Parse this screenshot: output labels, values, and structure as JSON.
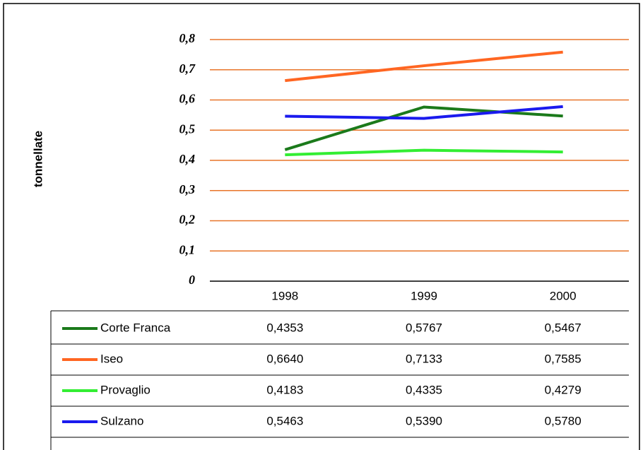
{
  "chart_data": {
    "type": "line",
    "y_label": "tonnellate",
    "categories": [
      "1998",
      "1999",
      "2000"
    ],
    "series": [
      {
        "name": "Corte Franca",
        "color": "#1b7a1b",
        "values": [
          0.4353,
          0.5767,
          0.5467
        ],
        "value_labels": [
          "0,4353",
          "0,5767",
          "0,5467"
        ]
      },
      {
        "name": "Iseo",
        "color": "#ff6622",
        "values": [
          0.664,
          0.7133,
          0.7585
        ],
        "value_labels": [
          "0,6640",
          "0,7133",
          "0,7585"
        ]
      },
      {
        "name": "Provaglio",
        "color": "#33ee33",
        "values": [
          0.4183,
          0.4335,
          0.4279
        ],
        "value_labels": [
          "0,4183",
          "0,4335",
          "0,4279"
        ]
      },
      {
        "name": "Sulzano",
        "color": "#1a1aee",
        "values": [
          0.5463,
          0.539,
          0.578
        ],
        "value_labels": [
          "0,5463",
          "0,5390",
          "0,5780"
        ]
      }
    ],
    "ylim": [
      0,
      0.8
    ],
    "yticks": [
      0,
      {
        "value": 0.1,
        "label": "0,1"
      },
      {
        "value": 0.2,
        "label": "0,2"
      },
      {
        "value": 0.3,
        "label": "0,3"
      },
      {
        "value": 0.4,
        "label": "0,4"
      },
      {
        "value": 0.5,
        "label": "0,5"
      },
      {
        "value": 0.6,
        "label": "0,6"
      },
      {
        "value": 0.7,
        "label": "0,7"
      },
      {
        "value": 0.8,
        "label": "0,8"
      }
    ],
    "grid": true,
    "grid_color": "#e8752a"
  }
}
